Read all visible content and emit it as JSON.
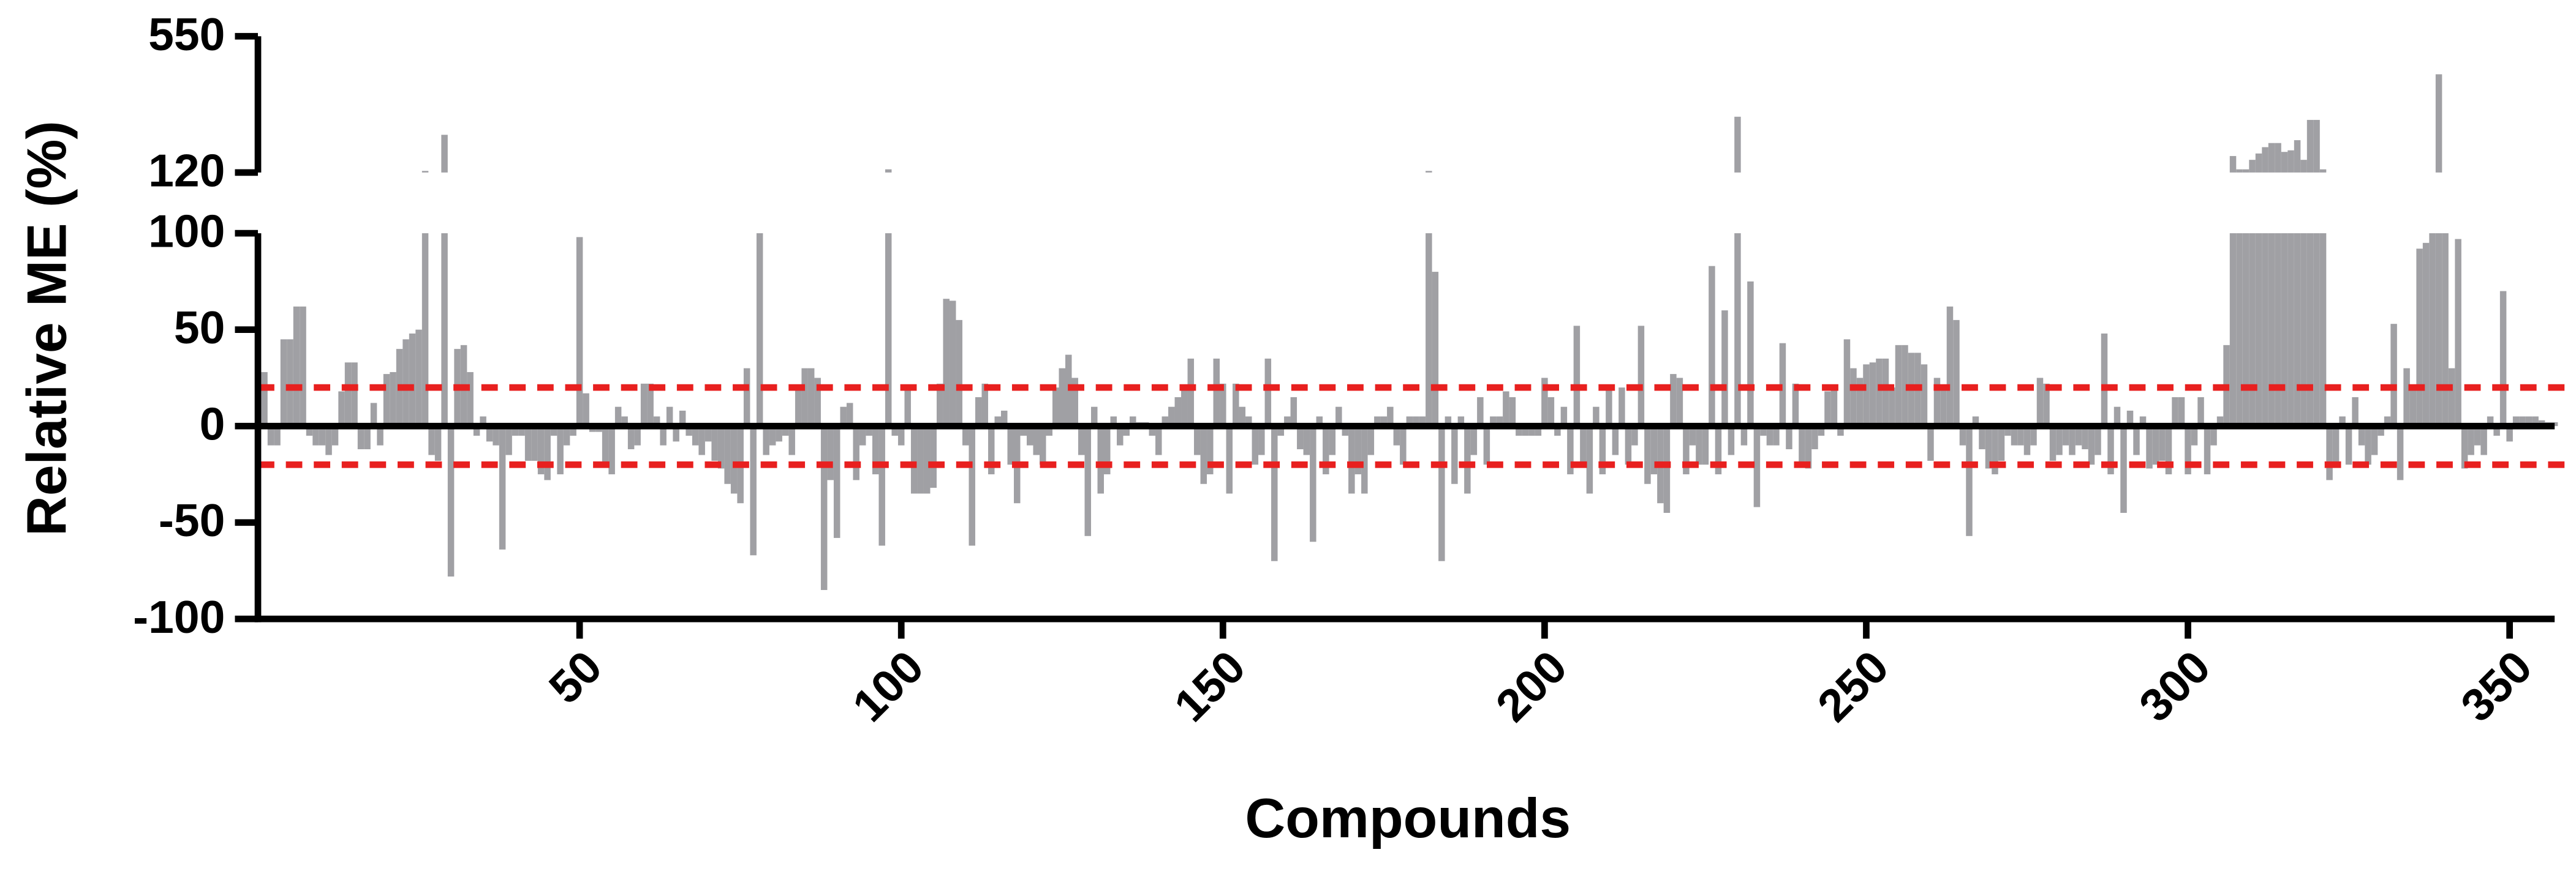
{
  "chart_data": {
    "type": "bar",
    "xlabel": "Compounds",
    "ylabel": "Relative ME (%)",
    "color": "#a0a0a4",
    "x": [
      1,
      2,
      3,
      4,
      5,
      6,
      7,
      8,
      9,
      10,
      11,
      12,
      13,
      14,
      15,
      16,
      17,
      18,
      19,
      20,
      21,
      22,
      23,
      24,
      25,
      26,
      27,
      28,
      29,
      30,
      31,
      32,
      33,
      34,
      35,
      36,
      37,
      38,
      39,
      40,
      41,
      42,
      43,
      44,
      45,
      46,
      47,
      48,
      49,
      50,
      51,
      52,
      53,
      54,
      55,
      56,
      57,
      58,
      59,
      60,
      61,
      62,
      63,
      64,
      65,
      66,
      67,
      68,
      69,
      70,
      71,
      72,
      73,
      74,
      75,
      76,
      77,
      78,
      79,
      80,
      81,
      82,
      83,
      84,
      85,
      86,
      87,
      88,
      89,
      90,
      91,
      92,
      93,
      94,
      95,
      96,
      97,
      98,
      99,
      100,
      101,
      102,
      103,
      104,
      105,
      106,
      107,
      108,
      109,
      110,
      111,
      112,
      113,
      114,
      115,
      116,
      117,
      118,
      119,
      120,
      121,
      122,
      123,
      124,
      125,
      126,
      127,
      128,
      129,
      130,
      131,
      132,
      133,
      134,
      135,
      136,
      137,
      138,
      139,
      140,
      141,
      142,
      143,
      144,
      145,
      146,
      147,
      148,
      149,
      150,
      151,
      152,
      153,
      154,
      155,
      156,
      157,
      158,
      159,
      160,
      161,
      162,
      163,
      164,
      165,
      166,
      167,
      168,
      169,
      170,
      171,
      172,
      173,
      174,
      175,
      176,
      177,
      178,
      179,
      180,
      181,
      182,
      183,
      184,
      185,
      186,
      187,
      188,
      189,
      190,
      191,
      192,
      193,
      194,
      195,
      196,
      197,
      198,
      199,
      200,
      201,
      202,
      203,
      204,
      205,
      206,
      207,
      208,
      209,
      210,
      211,
      212,
      213,
      214,
      215,
      216,
      217,
      218,
      219,
      220,
      221,
      222,
      223,
      224,
      225,
      226,
      227,
      228,
      229,
      230,
      231,
      232,
      233,
      234,
      235,
      236,
      237,
      238,
      239,
      240,
      241,
      242,
      243,
      244,
      245,
      246,
      247,
      248,
      249,
      250,
      251,
      252,
      253,
      254,
      255,
      256,
      257,
      258,
      259,
      260,
      261,
      262,
      263,
      264,
      265,
      266,
      267,
      268,
      269,
      270,
      271,
      272,
      273,
      274,
      275,
      276,
      277,
      278,
      279,
      280,
      281,
      282,
      283,
      284,
      285,
      286,
      287,
      288,
      289,
      290,
      291,
      292,
      293,
      294,
      295,
      296,
      297,
      298,
      299,
      300,
      301,
      302,
      303,
      304,
      305,
      306,
      307,
      308,
      309,
      310,
      311,
      312,
      313,
      314,
      315,
      316,
      317,
      318,
      319,
      320,
      321,
      322,
      323,
      324,
      325,
      326,
      327,
      328,
      329,
      330,
      331,
      332,
      333,
      334,
      335,
      336,
      337,
      338,
      339,
      340,
      341,
      342,
      343,
      344,
      345,
      346,
      347,
      348,
      349,
      350,
      351,
      352,
      353,
      354,
      355,
      356,
      357
    ],
    "values": [
      28,
      -10,
      -10,
      45,
      45,
      62,
      62,
      -5,
      -10,
      -10,
      -15,
      -10,
      18,
      33,
      33,
      -12,
      -12,
      12,
      -10,
      27,
      28,
      40,
      45,
      48,
      50,
      125,
      -15,
      -18,
      239,
      -78,
      40,
      42,
      28,
      -5,
      5,
      -8,
      -10,
      -64,
      -15,
      -5,
      -5,
      -18,
      -18,
      -25,
      -28,
      -5,
      -25,
      -10,
      -5,
      98,
      17,
      -3,
      -3,
      -20,
      -25,
      10,
      5,
      -12,
      -10,
      22,
      22,
      5,
      -10,
      10,
      -8,
      8,
      -5,
      -10,
      -15,
      -8,
      -18,
      -22,
      -30,
      -35,
      -40,
      30,
      -67,
      100,
      -15,
      -10,
      -8,
      -5,
      -15,
      20,
      30,
      30,
      25,
      -85,
      -28,
      -58,
      10,
      12,
      -28,
      -10,
      -5,
      -25,
      -62,
      130,
      -5,
      -10,
      20,
      -35,
      -35,
      -35,
      -32,
      22,
      66,
      65,
      55,
      -10,
      -62,
      15,
      22,
      -25,
      5,
      8,
      -20,
      -40,
      -5,
      -10,
      -15,
      -20,
      -5,
      20,
      30,
      37,
      25,
      -15,
      -57,
      10,
      -35,
      -25,
      5,
      -10,
      -5,
      5,
      2,
      2,
      -5,
      -15,
      5,
      10,
      15,
      20,
      35,
      -15,
      -30,
      -25,
      35,
      22,
      -35,
      22,
      10,
      5,
      -20,
      -15,
      35,
      -70,
      -5,
      5,
      15,
      -12,
      -15,
      -60,
      5,
      -25,
      -15,
      10,
      -5,
      -35,
      -25,
      -35,
      -15,
      5,
      5,
      10,
      -10,
      -20,
      5,
      5,
      5,
      125,
      80,
      -70,
      5,
      -30,
      5,
      -35,
      -15,
      15,
      -20,
      5,
      5,
      18,
      15,
      -5,
      -5,
      -5,
      -5,
      25,
      15,
      -5,
      10,
      -25,
      52,
      -20,
      -35,
      10,
      -25,
      20,
      -15,
      20,
      -20,
      -10,
      52,
      -30,
      -25,
      -40,
      -45,
      27,
      25,
      -25,
      -10,
      -20,
      -20,
      83,
      -25,
      60,
      -15,
      296,
      -10,
      75,
      -42,
      -5,
      -10,
      -10,
      43,
      -12,
      22,
      -20,
      -22,
      -12,
      -5,
      18,
      20,
      -5,
      45,
      30,
      25,
      32,
      33,
      35,
      35,
      20,
      42,
      42,
      38,
      38,
      32,
      -18,
      25,
      20,
      62,
      55,
      -10,
      -57,
      5,
      -12,
      -22,
      -25,
      -18,
      -5,
      -10,
      -10,
      -15,
      -10,
      25,
      22,
      -18,
      -15,
      -10,
      -15,
      -10,
      -12,
      -20,
      -15,
      48,
      -25,
      10,
      -45,
      8,
      -15,
      5,
      -22,
      -20,
      -18,
      -25,
      15,
      15,
      -25,
      -10,
      15,
      -25,
      -10,
      5,
      42,
      172,
      130,
      130,
      160,
      180,
      200,
      213,
      213,
      185,
      190,
      222,
      160,
      286,
      286,
      130,
      -28,
      -20,
      5,
      -20,
      15,
      -10,
      -20,
      -15,
      -5,
      5,
      53,
      -28,
      30,
      20,
      92,
      95,
      100,
      430,
      100,
      30,
      97,
      -22,
      -15,
      -10,
      -15,
      5,
      -5,
      70,
      -8,
      5,
      5,
      5,
      5,
      3,
      2,
      2
    ],
    "xlim": [
      0,
      357
    ],
    "xticks": [
      50,
      100,
      150,
      200,
      250,
      300,
      350
    ],
    "ylim": [
      -100,
      550
    ],
    "axis_break": [
      100,
      120
    ],
    "yticks": [
      -100,
      -50,
      0,
      50,
      100,
      120,
      550
    ],
    "reference_lines": [
      20,
      -20
    ],
    "reference_color": "#e8201f"
  }
}
